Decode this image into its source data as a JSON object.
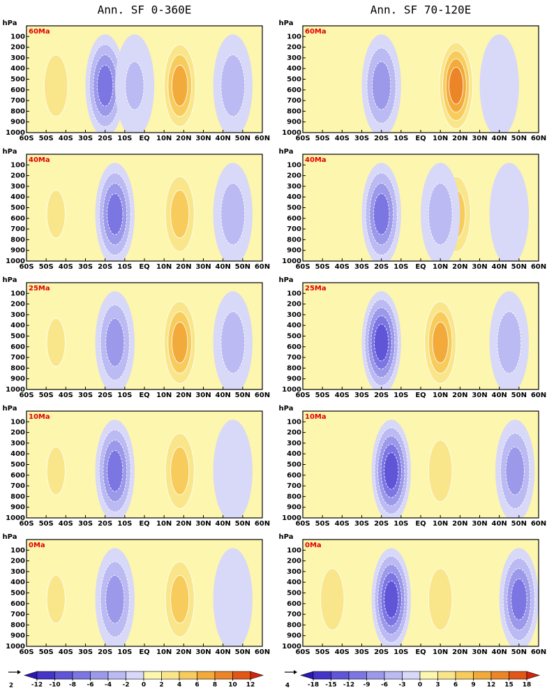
{
  "axes": {
    "ylabel": "hPa",
    "xlim": [
      -60,
      60
    ],
    "ylim": [
      1000,
      0
    ],
    "xticks": [
      {
        "value": -60,
        "label": "60S"
      },
      {
        "value": -50,
        "label": "50S"
      },
      {
        "value": -40,
        "label": "40S"
      },
      {
        "value": -30,
        "label": "30S"
      },
      {
        "value": -20,
        "label": "20S"
      },
      {
        "value": -10,
        "label": "10S"
      },
      {
        "value": 0,
        "label": "EQ"
      },
      {
        "value": 10,
        "label": "10N"
      },
      {
        "value": 20,
        "label": "20N"
      },
      {
        "value": 30,
        "label": "30N"
      },
      {
        "value": 40,
        "label": "40N"
      },
      {
        "value": 50,
        "label": "50N"
      },
      {
        "value": 60,
        "label": "60N"
      }
    ],
    "yticks": [
      100,
      200,
      300,
      400,
      500,
      600,
      700,
      800,
      900,
      1000
    ]
  },
  "figure": {
    "columns": [
      {
        "title": "Ann. SF 0-360E",
        "ref_vector_label": "2",
        "levels": [
          -12,
          -10,
          -8,
          -6,
          -4,
          -2,
          0,
          2,
          4,
          6,
          8,
          10,
          12
        ],
        "colors": [
          "#2a18b0",
          "#4434c8",
          "#5f55d6",
          "#7c76e2",
          "#9c99ea",
          "#bbbaf2",
          "#d8d8f8",
          "#fdf6ae",
          "#fae68a",
          "#f7cc5c",
          "#f2aa3a",
          "#ec8528",
          "#e25618",
          "#d0260e"
        ],
        "panels": [
          {
            "label": "60Ma",
            "cells": [
              {
                "lat": -45,
                "value": 4
              },
              {
                "lat": -20,
                "value": -8
              },
              {
                "lat": -5,
                "value": -3
              },
              {
                "lat": 18,
                "value": 8
              },
              {
                "lat": 45,
                "value": -4
              }
            ]
          },
          {
            "label": "40Ma",
            "cells": [
              {
                "lat": -45,
                "value": 3
              },
              {
                "lat": -15,
                "value": -8
              },
              {
                "lat": 18,
                "value": 6
              },
              {
                "lat": 45,
                "value": -4
              }
            ]
          },
          {
            "label": "25Ma",
            "cells": [
              {
                "lat": -45,
                "value": 3
              },
              {
                "lat": -15,
                "value": -6
              },
              {
                "lat": 18,
                "value": 8
              },
              {
                "lat": 45,
                "value": -4
              }
            ]
          },
          {
            "label": "10Ma",
            "cells": [
              {
                "lat": -45,
                "value": 3
              },
              {
                "lat": -15,
                "value": -8
              },
              {
                "lat": 18,
                "value": 6
              },
              {
                "lat": 45,
                "value": -2
              }
            ]
          },
          {
            "label": "0Ma",
            "cells": [
              {
                "lat": -45,
                "value": 3
              },
              {
                "lat": -15,
                "value": -6
              },
              {
                "lat": 18,
                "value": 6
              },
              {
                "lat": 45,
                "value": -2
              }
            ]
          }
        ]
      },
      {
        "title": "Ann. SF 70-120E",
        "ref_vector_label": "4",
        "levels": [
          -18,
          -15,
          -12,
          -9,
          -6,
          -3,
          0,
          3,
          6,
          9,
          12,
          15,
          18
        ],
        "colors": [
          "#2a18b0",
          "#4434c8",
          "#5f55d6",
          "#7c76e2",
          "#9c99ea",
          "#bbbaf2",
          "#d8d8f8",
          "#fdf6ae",
          "#fae68a",
          "#f7cc5c",
          "#f2aa3a",
          "#ec8528",
          "#e25618",
          "#d0260e"
        ],
        "panels": [
          {
            "label": "60Ma",
            "cells": [
              {
                "lat": -45,
                "value": 3
              },
              {
                "lat": -20,
                "value": -9
              },
              {
                "lat": 18,
                "value": 15
              },
              {
                "lat": 40,
                "value": -3
              }
            ]
          },
          {
            "label": "40Ma",
            "cells": [
              {
                "lat": -20,
                "value": -12
              },
              {
                "lat": 18,
                "value": 9
              },
              {
                "lat": 10,
                "value": -6
              },
              {
                "lat": 45,
                "value": -3
              }
            ]
          },
          {
            "label": "25Ma",
            "cells": [
              {
                "lat": -45,
                "value": 3
              },
              {
                "lat": -20,
                "value": -15
              },
              {
                "lat": 10,
                "value": 12
              },
              {
                "lat": 45,
                "value": -6
              }
            ]
          },
          {
            "label": "10Ma",
            "cells": [
              {
                "lat": -45,
                "value": 3
              },
              {
                "lat": -15,
                "value": -15
              },
              {
                "lat": 10,
                "value": 6
              },
              {
                "lat": 48,
                "value": -9
              }
            ]
          },
          {
            "label": "0Ma",
            "cells": [
              {
                "lat": -45,
                "value": 6
              },
              {
                "lat": -15,
                "value": -15
              },
              {
                "lat": 10,
                "value": 6
              },
              {
                "lat": 50,
                "value": -12
              }
            ]
          }
        ]
      }
    ]
  }
}
